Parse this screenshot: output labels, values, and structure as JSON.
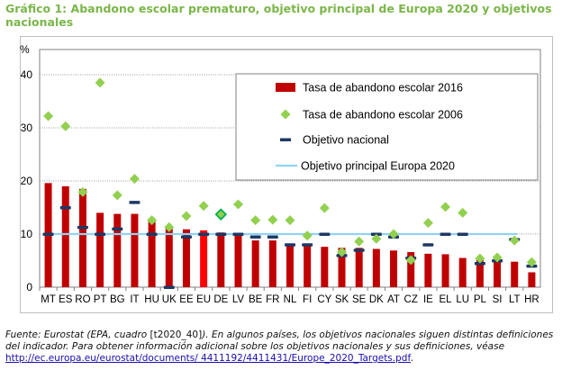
{
  "title": "Gráfico 1: Abandono escolar prematuro, objetivo principal de Europa 2020 y objetivos nacionales",
  "footnote": {
    "source": "Fuente: Eurostat (EPA, cuadro ",
    "code": "[t2020_40]",
    "source_end": ").",
    "text": " En algunos países, los objetivos nacionales siguen distintas definiciones del indicador. Para obtener información adicional sobre los objetivos nacionales y sus definiciones, véase ",
    "link": "http://ec.europa.eu/eurostat/documents/ 4411192/4411431/Europe_2020_Targets.pdf",
    "end": "."
  },
  "chart_data": {
    "type": "bar",
    "ylabel": "%",
    "ylim": [
      0,
      40
    ],
    "yticks": [
      0,
      10,
      20,
      30,
      40
    ],
    "grid": true,
    "legend_placement": "top-right",
    "categories": [
      "MT",
      "ES",
      "RO",
      "PT",
      "BG",
      "IT",
      "HU",
      "UK",
      "EE",
      "EU",
      "DE",
      "LV",
      "BE",
      "FR",
      "NL",
      "FI",
      "CY",
      "SK",
      "SE",
      "DK",
      "AT",
      "CZ",
      "IE",
      "EL",
      "LU",
      "PL",
      "SI",
      "LT",
      "HR"
    ],
    "highlight_category": "EU",
    "series": [
      {
        "name": "Tasa de abandono escolar 2016",
        "kind": "bar",
        "color": "#c00000",
        "highlight_color": "#ff0000",
        "values": [
          19.6,
          19.0,
          18.5,
          14.0,
          13.8,
          13.8,
          12.4,
          11.2,
          10.9,
          10.7,
          10.3,
          10.0,
          8.8,
          8.8,
          8.0,
          7.9,
          7.6,
          7.4,
          7.4,
          7.2,
          6.9,
          6.6,
          6.3,
          6.2,
          5.5,
          5.2,
          4.9,
          4.8,
          2.8
        ]
      },
      {
        "name": "Tasa de abandono escolar 2006",
        "kind": "marker",
        "color": "#92d050",
        "values": [
          32.2,
          30.3,
          17.9,
          38.5,
          17.3,
          20.4,
          12.6,
          11.3,
          13.4,
          15.3,
          13.7,
          15.6,
          12.6,
          12.7,
          12.6,
          9.7,
          14.9,
          6.6,
          8.6,
          9.1,
          10.0,
          5.1,
          12.1,
          15.1,
          14.0,
          5.4,
          5.6,
          8.8,
          4.7
        ]
      },
      {
        "name": "Objetivo nacional",
        "kind": "dash",
        "color": "#1f3864",
        "values": [
          10,
          15,
          11.3,
          10,
          11,
          16,
          10,
          0,
          9.5,
          10,
          10,
          10,
          9.5,
          9.5,
          8,
          8,
          10,
          6,
          7,
          10,
          9.5,
          5.5,
          8,
          10,
          10,
          4.5,
          5,
          9,
          4
        ]
      },
      {
        "name": "Objetivo principal Europa 2020",
        "kind": "hline",
        "color": "#8fd3f4",
        "value": 10
      }
    ]
  }
}
